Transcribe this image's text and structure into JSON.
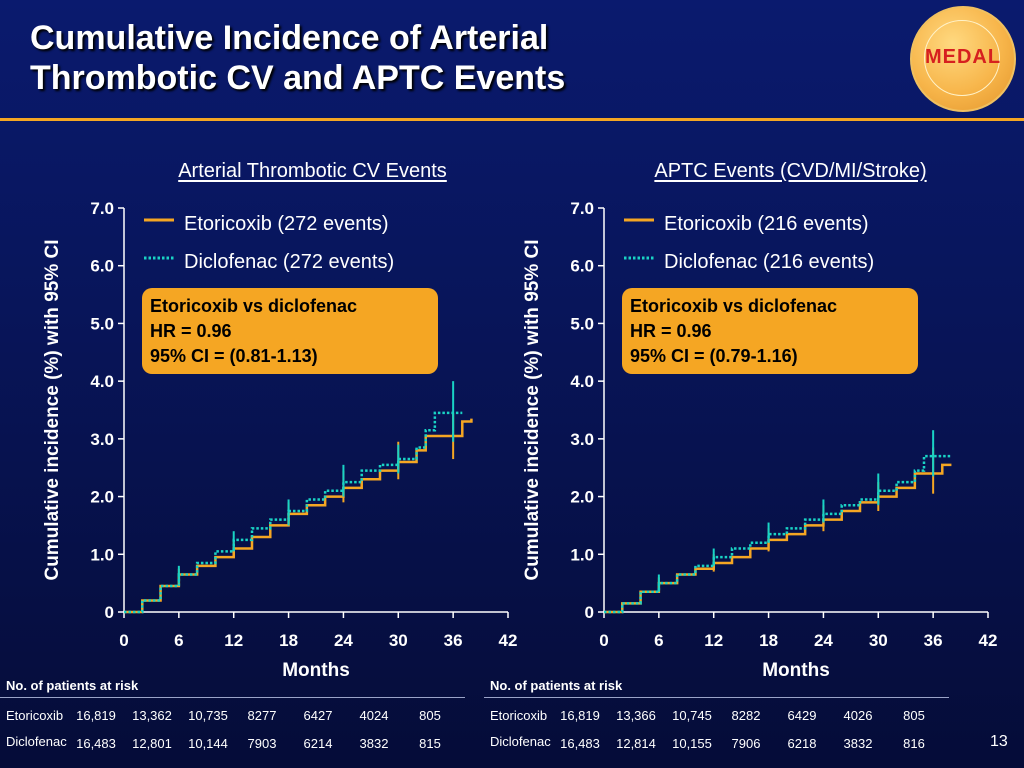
{
  "slide": {
    "title_line1": "Cumulative Incidence of Arterial",
    "title_line2": "Thrombotic CV and APTC Events",
    "logo_text": "MEDAL",
    "page_number": "13"
  },
  "colors": {
    "etoricoxib": "#f5a623",
    "diclofenac": "#19d3c5",
    "hr_box": "#f5a623",
    "accent_rule": "#f5a623"
  },
  "chart_data": [
    {
      "type": "line",
      "title": "Arterial Thrombotic CV Events",
      "xlabel": "Months",
      "ylabel": "Cumulative incidence (%) with 95% CI",
      "xlim": [
        0,
        42
      ],
      "ylim": [
        0,
        7
      ],
      "x_ticks": [
        0,
        6,
        12,
        18,
        24,
        30,
        36,
        42
      ],
      "x_tick_labels": [
        "0",
        "6",
        "12",
        "18",
        "24",
        "30",
        "36",
        "42"
      ],
      "y_ticks": [
        0,
        1,
        2,
        3,
        4,
        5,
        6,
        7
      ],
      "y_tick_labels": [
        "0",
        "1.0",
        "2.0",
        "3.0",
        "4.0",
        "5.0",
        "6.0",
        "7.0"
      ],
      "legend_position": "top-right",
      "series": [
        {
          "name": "Etoricoxib (272 events)",
          "style": "solid",
          "color": "#f5a623",
          "x": [
            0,
            2,
            4,
            6,
            8,
            10,
            12,
            14,
            16,
            18,
            20,
            22,
            24,
            26,
            28,
            30,
            32,
            33,
            36,
            37,
            38
          ],
          "y": [
            0,
            0.2,
            0.45,
            0.65,
            0.8,
            0.95,
            1.1,
            1.3,
            1.5,
            1.7,
            1.85,
            2.0,
            2.15,
            2.3,
            2.45,
            2.6,
            2.8,
            3.05,
            3.05,
            3.3,
            3.35
          ],
          "ci": [
            {
              "x": 6,
              "low": 0.55,
              "high": 0.75
            },
            {
              "x": 12,
              "low": 0.95,
              "high": 1.25
            },
            {
              "x": 18,
              "low": 1.5,
              "high": 1.9
            },
            {
              "x": 24,
              "low": 1.9,
              "high": 2.45
            },
            {
              "x": 30,
              "low": 2.3,
              "high": 2.95
            },
            {
              "x": 36,
              "low": 2.65,
              "high": 3.45
            }
          ]
        },
        {
          "name": "Diclofenac (272 events)",
          "style": "dotted",
          "color": "#19d3c5",
          "x": [
            0,
            2,
            4,
            6,
            8,
            10,
            12,
            14,
            16,
            18,
            20,
            22,
            24,
            26,
            28,
            30,
            32,
            33,
            34,
            36,
            37
          ],
          "y": [
            0,
            0.2,
            0.45,
            0.65,
            0.85,
            1.05,
            1.25,
            1.45,
            1.6,
            1.75,
            1.95,
            2.1,
            2.25,
            2.45,
            2.55,
            2.65,
            2.85,
            3.15,
            3.45,
            3.45,
            3.45
          ],
          "ci": [
            {
              "x": 6,
              "low": 0.5,
              "high": 0.8
            },
            {
              "x": 12,
              "low": 1.05,
              "high": 1.4
            },
            {
              "x": 18,
              "low": 1.5,
              "high": 1.95
            },
            {
              "x": 24,
              "low": 2.0,
              "high": 2.55
            },
            {
              "x": 30,
              "low": 2.4,
              "high": 2.9
            },
            {
              "x": 36,
              "low": 2.95,
              "high": 4.0
            }
          ]
        }
      ],
      "annotation": {
        "line1": "Etoricoxib vs diclofenac",
        "line2": "HR = 0.96",
        "line3": "95% CI = (0.81-1.13)"
      },
      "risk_table": {
        "header": "No. of patients at risk",
        "rows": [
          {
            "label": "Etoricoxib",
            "values": [
              "16,819",
              "13,362",
              "10,735",
              "8277",
              "6427",
              "4024",
              "805"
            ]
          },
          {
            "label": "Diclofenac",
            "values": [
              "16,483",
              "12,801",
              "10,144",
              "7903",
              "6214",
              "3832",
              "815"
            ]
          }
        ]
      }
    },
    {
      "type": "line",
      "title": "APTC Events (CVD/MI/Stroke)",
      "xlabel": "Months",
      "ylabel": "Cumulative incidence (%) with 95% CI",
      "xlim": [
        0,
        42
      ],
      "ylim": [
        0,
        7
      ],
      "x_ticks": [
        0,
        6,
        12,
        18,
        24,
        30,
        36,
        42
      ],
      "x_tick_labels": [
        "0",
        "6",
        "12",
        "18",
        "24",
        "30",
        "36",
        "42"
      ],
      "y_ticks": [
        0,
        1,
        2,
        3,
        4,
        5,
        6,
        7
      ],
      "y_tick_labels": [
        "0",
        "1.0",
        "2.0",
        "3.0",
        "4.0",
        "5.0",
        "6.0",
        "7.0"
      ],
      "legend_position": "top-right",
      "series": [
        {
          "name": "Etoricoxib (216 events)",
          "style": "solid",
          "color": "#f5a623",
          "x": [
            0,
            2,
            4,
            6,
            8,
            10,
            12,
            14,
            16,
            18,
            20,
            22,
            24,
            26,
            28,
            30,
            32,
            34,
            36,
            37,
            38
          ],
          "y": [
            0,
            0.15,
            0.35,
            0.5,
            0.65,
            0.75,
            0.85,
            0.95,
            1.1,
            1.25,
            1.35,
            1.5,
            1.6,
            1.75,
            1.9,
            2.0,
            2.15,
            2.4,
            2.4,
            2.55,
            2.55
          ],
          "ci": [
            {
              "x": 6,
              "low": 0.4,
              "high": 0.6
            },
            {
              "x": 12,
              "low": 0.7,
              "high": 1.0
            },
            {
              "x": 18,
              "low": 1.05,
              "high": 1.45
            },
            {
              "x": 24,
              "low": 1.4,
              "high": 1.85
            },
            {
              "x": 30,
              "low": 1.75,
              "high": 2.25
            },
            {
              "x": 36,
              "low": 2.05,
              "high": 2.85
            }
          ]
        },
        {
          "name": "Diclofenac (216 events)",
          "style": "dotted",
          "color": "#19d3c5",
          "x": [
            0,
            2,
            4,
            6,
            8,
            10,
            12,
            14,
            16,
            18,
            20,
            22,
            24,
            26,
            28,
            30,
            32,
            34,
            35,
            36,
            38
          ],
          "y": [
            0,
            0.15,
            0.35,
            0.5,
            0.65,
            0.8,
            0.95,
            1.1,
            1.2,
            1.35,
            1.45,
            1.6,
            1.7,
            1.85,
            1.95,
            2.1,
            2.25,
            2.45,
            2.7,
            2.7,
            2.7
          ],
          "ci": [
            {
              "x": 6,
              "low": 0.35,
              "high": 0.65
            },
            {
              "x": 12,
              "low": 0.8,
              "high": 1.1
            },
            {
              "x": 18,
              "low": 1.2,
              "high": 1.55
            },
            {
              "x": 24,
              "low": 1.55,
              "high": 1.95
            },
            {
              "x": 30,
              "low": 1.85,
              "high": 2.4
            },
            {
              "x": 36,
              "low": 2.35,
              "high": 3.15
            }
          ]
        }
      ],
      "annotation": {
        "line1": "Etoricoxib vs diclofenac",
        "line2": "HR = 0.96",
        "line3": "95% CI = (0.79-1.16)"
      },
      "risk_table": {
        "header": "No. of patients at risk",
        "rows": [
          {
            "label": "Etoricoxib",
            "values": [
              "16,819",
              "13,366",
              "10,745",
              "8282",
              "6429",
              "4026",
              "805"
            ]
          },
          {
            "label": "Diclofenac",
            "values": [
              "16,483",
              "12,814",
              "10,155",
              "7906",
              "6218",
              "3832",
              "816"
            ]
          }
        ]
      }
    }
  ]
}
